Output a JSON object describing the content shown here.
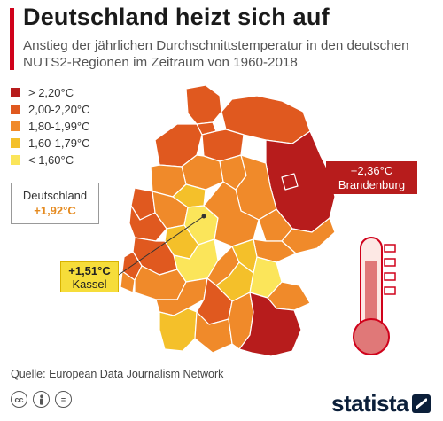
{
  "header": {
    "title": "Deutschland heizt sich auf",
    "subtitle": "Anstieg der jährlichen Durchschnittstemperatur in den deutschen NUTS2-Regionen im Zeitraum von 1960-2018"
  },
  "legend": {
    "items": [
      {
        "label": "> 2,20°C",
        "color": "#b71c1c"
      },
      {
        "label": "2,00-2,20°C",
        "color": "#e0591f"
      },
      {
        "label": "1,80-1,99°C",
        "color": "#f08a2a"
      },
      {
        "label": "1,60-1,79°C",
        "color": "#f4c02a"
      },
      {
        "label": "< 1,60°C",
        "color": "#fbe55a"
      }
    ]
  },
  "callouts": {
    "germany": {
      "label": "Deutschland",
      "value": "+1,92°C"
    },
    "brandenburg": {
      "value": "+2,36°C",
      "label": "Brandenburg"
    },
    "kassel": {
      "value": "+1,51°C",
      "label": "Kassel"
    }
  },
  "map": {
    "region_colors": {
      "dark_red": "#b71c1c",
      "red_orange": "#e0591f",
      "orange": "#f08a2a",
      "gold": "#f4c02a",
      "yellow": "#fbe55a"
    }
  },
  "footer": {
    "source": "Quelle: European Data Journalism Network",
    "license_icons": [
      "cc",
      "by",
      "="
    ],
    "brand": "statista"
  }
}
